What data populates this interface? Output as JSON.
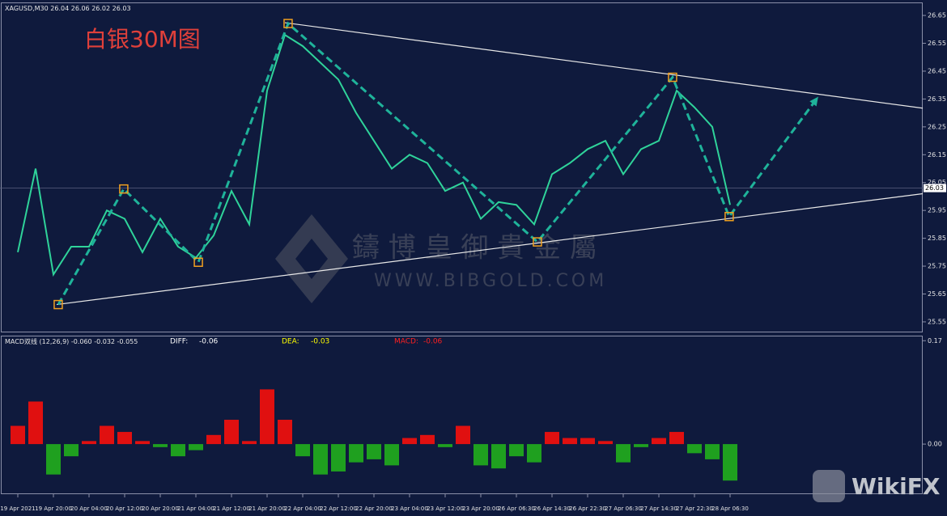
{
  "chart_data": [
    {
      "type": "line",
      "symbol": "XAGUSD,M30",
      "ohlc": [
        26.04,
        26.06,
        26.02,
        26.03
      ],
      "title": "白银30M图",
      "categories": [
        "19 Apr 2021",
        null,
        "19 Apr 20:00",
        null,
        "20 Apr 04:00",
        null,
        "20 Apr 12:00",
        null,
        "20 Apr 20:00",
        null,
        "21 Apr 04:00",
        null,
        "21 Apr 12:00",
        null,
        "21 Apr 20:00",
        null,
        "22 Apr 04:00",
        null,
        "22 Apr 12:00",
        null,
        "22 Apr 20:00",
        null,
        "23 Apr 04:00",
        null,
        "23 Apr 12:00",
        null,
        "23 Apr 20:00",
        null,
        "26 Apr 06:30",
        null,
        "26 Apr 14:30",
        null,
        "26 Apr 22:30",
        null,
        "27 Apr 06:30",
        null,
        "27 Apr 14:30",
        null,
        "27 Apr 22:30",
        null,
        "28 Apr 06:30"
      ],
      "values": [
        25.8,
        26.1,
        25.72,
        25.82,
        25.82,
        25.95,
        25.92,
        25.8,
        25.92,
        25.82,
        25.78,
        25.86,
        26.02,
        25.9,
        26.38,
        26.58,
        26.54,
        26.48,
        26.42,
        26.3,
        26.2,
        26.1,
        26.15,
        26.12,
        26.02,
        26.05,
        25.92,
        25.98,
        25.97,
        25.9,
        26.08,
        26.12,
        26.17,
        26.2,
        26.08,
        26.17,
        26.2,
        26.38,
        26.32,
        26.25,
        25.97
      ],
      "color": "#2fd39a",
      "current_price": 26.03,
      "ylim": [
        25.515,
        26.688
      ],
      "yticks": [
        25.55,
        25.65,
        25.75,
        25.85,
        25.95,
        26.05,
        26.15,
        26.25,
        26.35,
        26.45,
        26.55,
        26.65
      ],
      "trendlines": [
        {
          "x": [
            15.0,
            50.82
          ],
          "y": [
            26.624,
            26.317
          ]
        },
        {
          "x": [
            2.18,
            50.82
          ],
          "y": [
            25.612,
            26.01
          ]
        }
      ],
      "pattern": {
        "x": [
          2.27,
          5.95,
          10.14,
          15.18,
          29.18,
          36.77,
          39.95,
          44.95
        ],
        "y": [
          25.612,
          26.027,
          25.764,
          26.621,
          25.837,
          26.428,
          25.928,
          26.358
        ],
        "color": "#1fb39a"
      }
    },
    {
      "type": "bar",
      "indicator": "MACD双线 (12,26,9)",
      "indicator_values": [
        "-0.060",
        "-0.032",
        "-0.055"
      ],
      "legend": [
        {
          "name": "DIFF:",
          "value": -0.06,
          "color": "#ffffff"
        },
        {
          "name": "DEA:",
          "value": -0.03,
          "color": "#ffff00"
        },
        {
          "name": "MACD:",
          "value": -0.06,
          "color": "#ff2020"
        }
      ],
      "values": [
        0.03,
        0.07,
        -0.05,
        -0.02,
        0.005,
        0.03,
        0.02,
        0.005,
        -0.005,
        -0.02,
        -0.01,
        0.015,
        0.04,
        0.005,
        0.09,
        0.04,
        -0.02,
        -0.05,
        -0.045,
        -0.03,
        -0.025,
        -0.035,
        0.01,
        0.015,
        -0.005,
        0.03,
        -0.035,
        -0.04,
        -0.02,
        -0.03,
        0.02,
        0.01,
        0.01,
        0.005,
        -0.03,
        -0.005,
        0.01,
        0.02,
        -0.015,
        -0.025,
        -0.06
      ],
      "positive_color": "#e01010",
      "negative_color": "#1fa01f",
      "ylim": [
        -0.081,
        0.177
      ],
      "yticks": [
        {
          "value": 0,
          "label": "0.00"
        },
        0.17
      ]
    }
  ],
  "watermark": {
    "brand": "鑄 博 皇 御 貴 金 屬",
    "site": "WWW.BIBGOLD.COM",
    "badge": "WikiFX"
  }
}
